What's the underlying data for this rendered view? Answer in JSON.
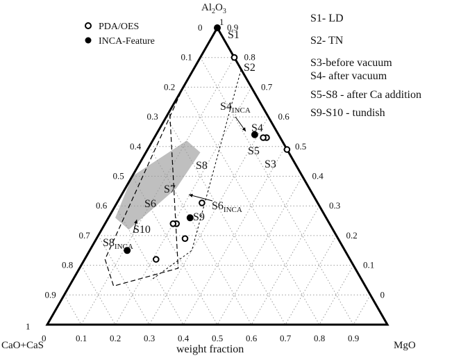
{
  "chart_data": {
    "type": "scatter",
    "ternary": true,
    "xlabel": "weight fraction",
    "vertices": {
      "top": {
        "main": "Al",
        "sub1": "2",
        "mid": "O",
        "sub2": "3"
      },
      "left": {
        "text": "CaO+CaS"
      },
      "right": {
        "text": "MgO"
      }
    },
    "vertex_values": {
      "top": "1",
      "left": "1"
    },
    "ticks": [
      "0",
      "0.1",
      "0.2",
      "0.3",
      "0.4",
      "0.5",
      "0.6",
      "0.7",
      "0.8",
      "0.9",
      "1"
    ],
    "legend": [
      {
        "label": "PDA/OES",
        "marker": "open-circle"
      },
      {
        "label": "INCA-Feature",
        "marker": "filled-circle"
      }
    ],
    "notes": [
      "S1- LD",
      "S2- TN",
      "S3-before vacuum",
      "S4- after vacuum",
      "S5-S8 - after Ca addition",
      "S9-S10 - tundish"
    ],
    "series": [
      {
        "name": "PDA/OES",
        "points": [
          {
            "id": "S2",
            "cao": 0.0,
            "mgo": 0.1,
            "al2o3": 0.9
          },
          {
            "id": "S3",
            "cao": 0.0,
            "mgo": 0.41,
            "al2o3": 0.59
          },
          {
            "id": "S4",
            "cao": 0.04,
            "mgo": 0.33,
            "al2o3": 0.63
          },
          {
            "id": "S5",
            "cao": 0.05,
            "mgo": 0.32,
            "al2o3": 0.63
          },
          {
            "id": "S8",
            "cao": 0.34,
            "mgo": 0.25,
            "al2o3": 0.41
          },
          {
            "id": "S7",
            "cao": 0.45,
            "mgo": 0.21,
            "al2o3": 0.34
          },
          {
            "id": "S6",
            "cao": 0.46,
            "mgo": 0.2,
            "al2o3": 0.34
          },
          {
            "id": "S9",
            "cao": 0.45,
            "mgo": 0.26,
            "al2o3": 0.29
          },
          {
            "id": "S10",
            "cao": 0.57,
            "mgo": 0.21,
            "al2o3": 0.22
          }
        ]
      },
      {
        "name": "INCA-Feature",
        "points": [
          {
            "id": "S1",
            "cao": 0.0,
            "mgo": 0.0,
            "al2o3": 1.0
          },
          {
            "id": "S4",
            "cao": 0.07,
            "mgo": 0.29,
            "al2o3": 0.64
          },
          {
            "id": "S6",
            "cao": 0.4,
            "mgo": 0.24,
            "al2o3": 0.36
          },
          {
            "id": "S8",
            "cao": 0.64,
            "mgo": 0.11,
            "al2o3": 0.25
          }
        ]
      }
    ],
    "point_labels": [
      {
        "id": "S1",
        "main": "S1",
        "sub": ""
      },
      {
        "id": "S2",
        "main": "S2",
        "sub": ""
      },
      {
        "id": "S3",
        "main": "S3",
        "sub": ""
      },
      {
        "id": "S4",
        "main": "S4",
        "sub": ""
      },
      {
        "id": "S4INCA",
        "main": "S4",
        "sub": "INCA"
      },
      {
        "id": "S5",
        "main": "S5",
        "sub": ""
      },
      {
        "id": "S6",
        "main": "S6",
        "sub": ""
      },
      {
        "id": "S6INCA",
        "main": "S6",
        "sub": "INCA"
      },
      {
        "id": "S7",
        "main": "S7",
        "sub": ""
      },
      {
        "id": "S8",
        "main": "S8",
        "sub": ""
      },
      {
        "id": "S8INCA",
        "main": "S8",
        "sub": "INCA"
      },
      {
        "id": "S9",
        "main": "S9",
        "sub": ""
      },
      {
        "id": "S10",
        "main": "S10",
        "sub": ""
      }
    ],
    "grid": true,
    "colors": {
      "marker": "#000000",
      "liquid_region": "#bfbfbf",
      "grid": "#9a9a9a"
    }
  }
}
